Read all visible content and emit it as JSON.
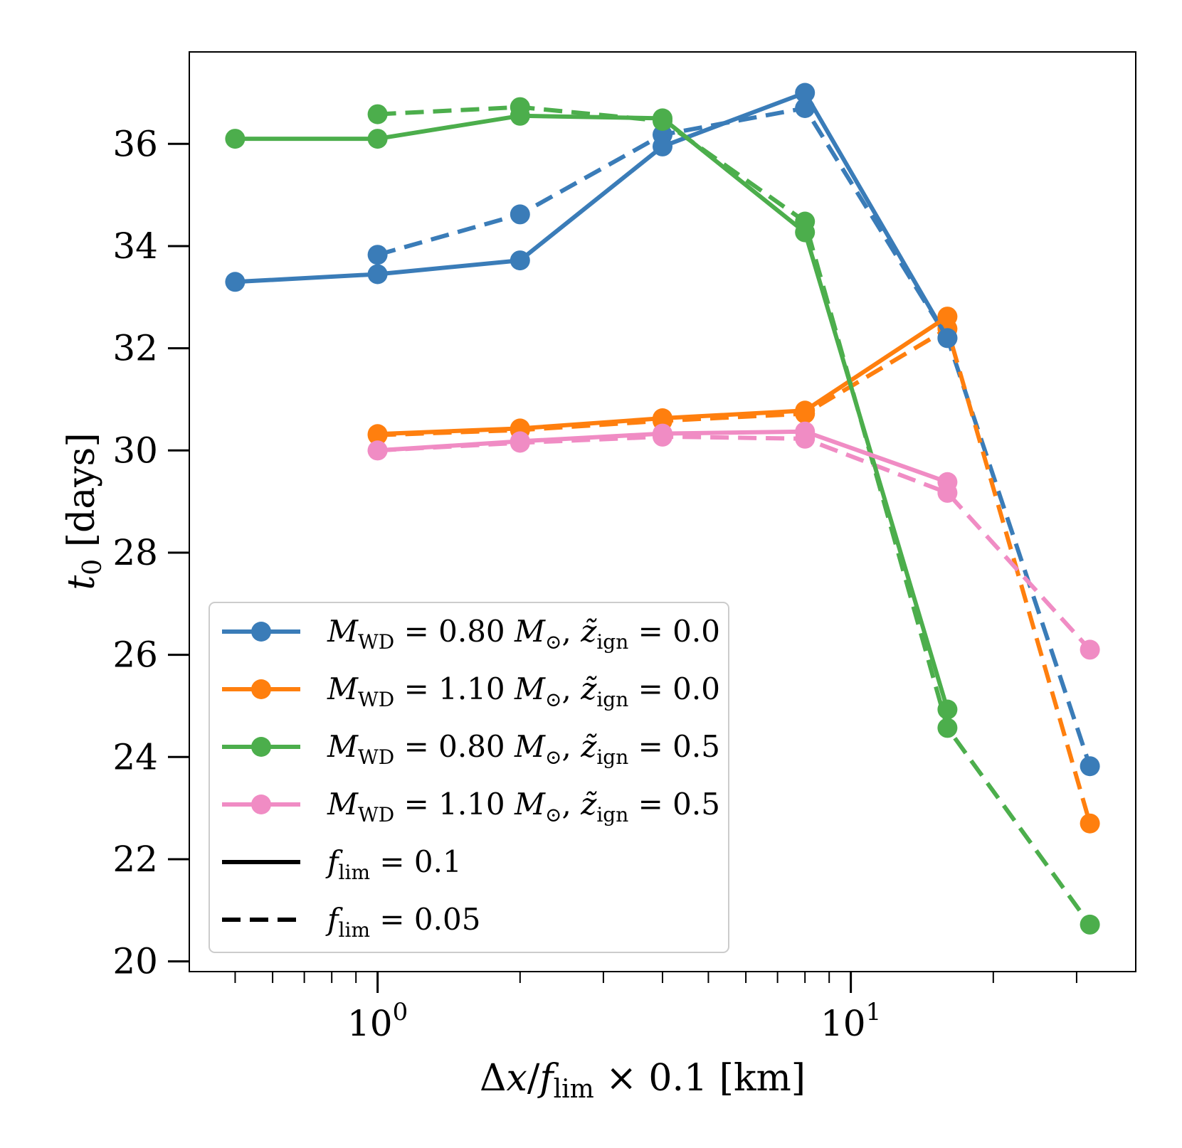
{
  "chart_data": {
    "type": "line",
    "title": "",
    "xlabel": "Δx/f_lim × 0.1 [km]",
    "ylabel": "t_0 [days]",
    "xscale": "log",
    "xlim": [
      0.4,
      40
    ],
    "ylim": [
      19.8,
      37.8
    ],
    "grid": false,
    "legend_position": "lower-left",
    "y_ticks": [
      20,
      22,
      24,
      26,
      28,
      30,
      32,
      34,
      36
    ],
    "x_major_ticks": [
      {
        "value": 1,
        "base": "10",
        "exp": "0"
      },
      {
        "value": 10,
        "base": "10",
        "exp": "1"
      }
    ],
    "x_minor_ticks": [
      0.5,
      0.6,
      0.7,
      0.8,
      0.9,
      2,
      3,
      4,
      5,
      6,
      7,
      8,
      9,
      20,
      30
    ],
    "series": [
      {
        "name": "M_WD = 0.80 M☉, z̃_ign = 0.0",
        "color": "#3a7cb8",
        "style": "solid",
        "x": [
          0.5,
          1,
          2,
          4,
          8,
          16
        ],
        "y": [
          33.3,
          33.45,
          33.72,
          35.95,
          37.0,
          32.2
        ]
      },
      {
        "name": "M_WD = 0.80 M☉, z̃_ign = 0.0",
        "color": "#3a7cb8",
        "style": "dashed",
        "x": [
          1,
          2,
          4,
          8,
          16,
          32
        ],
        "y": [
          33.83,
          34.62,
          36.18,
          36.7,
          32.2,
          23.82
        ]
      },
      {
        "name": "M_WD = 1.10 M☉, z̃_ign = 0.0",
        "color": "#ff7f0e",
        "style": "solid",
        "x": [
          1,
          2,
          4,
          8,
          16
        ],
        "y": [
          30.32,
          30.43,
          30.63,
          30.78,
          32.62
        ]
      },
      {
        "name": "M_WD = 1.10 M☉, z̃_ign = 0.0",
        "color": "#ff7f0e",
        "style": "dashed",
        "x": [
          1,
          2,
          4,
          8,
          16,
          32
        ],
        "y": [
          30.3,
          30.4,
          30.58,
          30.72,
          32.38,
          22.7
        ]
      },
      {
        "name": "M_WD = 0.80 M☉, z̃_ign = 0.5",
        "color": "#4cae4c",
        "style": "solid",
        "x": [
          0.5,
          1,
          2,
          4,
          8,
          16
        ],
        "y": [
          36.1,
          36.1,
          36.55,
          36.5,
          34.27,
          24.93
        ]
      },
      {
        "name": "M_WD = 0.80 M☉, z̃_ign = 0.5",
        "color": "#4cae4c",
        "style": "dashed",
        "x": [
          1,
          2,
          4,
          8,
          16,
          32
        ],
        "y": [
          36.58,
          36.72,
          36.45,
          34.48,
          24.57,
          20.72
        ]
      },
      {
        "name": "M_WD = 1.10 M☉, z̃_ign = 0.5",
        "color": "#f08cc4",
        "style": "solid",
        "x": [
          1,
          2,
          4,
          8,
          16
        ],
        "y": [
          30.0,
          30.18,
          30.33,
          30.37,
          29.38
        ]
      },
      {
        "name": "M_WD = 1.10 M☉, z̃_ign = 0.5",
        "color": "#f08cc4",
        "style": "dashed",
        "x": [
          1,
          2,
          4,
          8,
          16,
          32
        ],
        "y": [
          30.0,
          30.15,
          30.27,
          30.23,
          29.17,
          26.1
        ]
      }
    ],
    "legend": [
      {
        "kind": "marker",
        "color": "#3a7cb8",
        "m": "0.80",
        "z": "0.0"
      },
      {
        "kind": "marker",
        "color": "#ff7f0e",
        "m": "1.10",
        "z": "0.0"
      },
      {
        "kind": "marker",
        "color": "#4cae4c",
        "m": "0.80",
        "z": "0.5"
      },
      {
        "kind": "marker",
        "color": "#f08cc4",
        "m": "1.10",
        "z": "0.5"
      },
      {
        "kind": "style",
        "style": "solid",
        "f": "0.1"
      },
      {
        "kind": "style",
        "style": "dashed",
        "f": "0.05"
      }
    ]
  }
}
